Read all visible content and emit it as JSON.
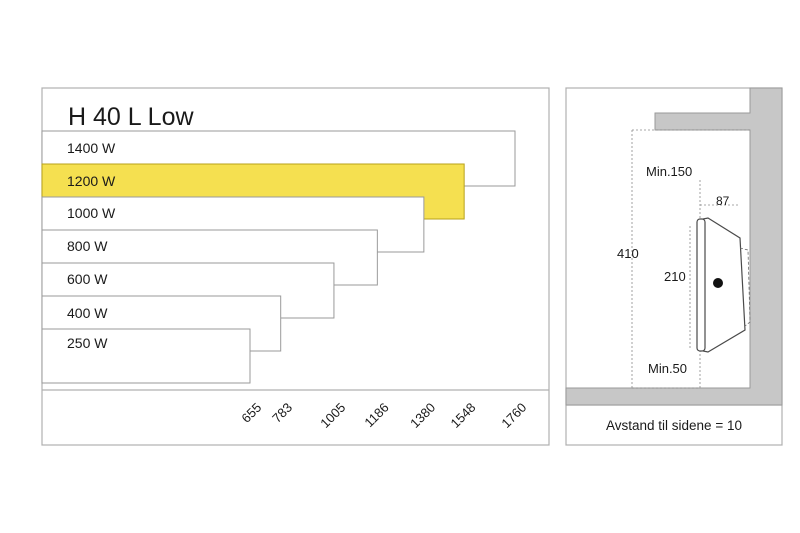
{
  "chart": {
    "title": "H 40 L Low",
    "highlight_color": "#f5e050",
    "rows": [
      {
        "label": "1400 W",
        "length": 1760
      },
      {
        "label": "1200 W",
        "length": 1548,
        "highlighted": true
      },
      {
        "label": "1000 W",
        "length": 1380
      },
      {
        "label": "800 W",
        "length": 1186
      },
      {
        "label": "600 W",
        "length": 1005
      },
      {
        "label": "400 W",
        "length": 783
      },
      {
        "label": "250 W",
        "length": 655
      }
    ],
    "axis_ticks": [
      "655",
      "783",
      "1005",
      "1186",
      "1380",
      "1548",
      "1760"
    ]
  },
  "diagram": {
    "dim_min_top": "Min.150",
    "dim_depth": "87",
    "dim_total": "410",
    "dim_height": "210",
    "dim_min_bottom": "Min.50",
    "caption": "Avstand til sidene = 10"
  }
}
